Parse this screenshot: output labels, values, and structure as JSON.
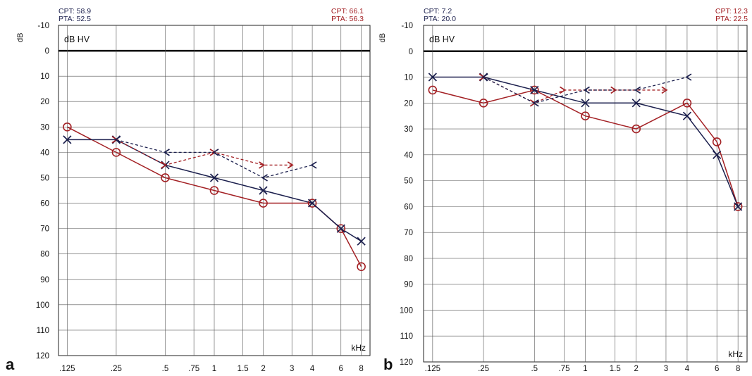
{
  "colors": {
    "right": "#a32024",
    "left": "#1b1f4d",
    "grid": "#555555",
    "zero_line": "#000000"
  },
  "chart_data": [
    {
      "type": "line",
      "panel_label": "a",
      "header_left": {
        "cpt": "CPT: 58.9",
        "pta": "PTA: 52.5"
      },
      "header_right": {
        "cpt": "CPT: 66.1",
        "pta": "PTA: 56.3"
      },
      "ylabel": "dB",
      "inner_label": "dB HV",
      "xlabel": "kHz",
      "x_ticks": [
        ".125",
        ".25",
        ".5",
        ".75",
        "1",
        "1.5",
        "2",
        "3",
        "4",
        "6",
        "8"
      ],
      "x_tick_values": [
        0.125,
        0.25,
        0.5,
        0.75,
        1,
        1.5,
        2,
        3,
        4,
        6,
        8
      ],
      "y_ticks": [
        "-10",
        "0",
        "10",
        "20",
        "30",
        "40",
        "50",
        "60",
        "70",
        "80",
        "90",
        "100",
        "110",
        "120"
      ],
      "ylim": [
        -10,
        120
      ],
      "y_inverted": true,
      "series": [
        {
          "key": "right_air",
          "marker": "circle",
          "line": "solid",
          "color_key": "right",
          "x": [
            0.125,
            0.25,
            0.5,
            1,
            2,
            4,
            6,
            8
          ],
          "y": [
            30,
            40,
            50,
            55,
            60,
            60,
            70,
            85
          ]
        },
        {
          "key": "left_air",
          "marker": "cross",
          "line": "solid",
          "color_key": "left",
          "x": [
            0.125,
            0.25,
            0.5,
            1,
            2,
            4,
            6,
            8
          ],
          "y": [
            35,
            35,
            45,
            50,
            55,
            60,
            70,
            75
          ]
        },
        {
          "key": "right_bone",
          "marker": "arrow-right",
          "line": "dashed",
          "color_key": "right",
          "x": [
            0.25,
            0.5,
            1,
            2,
            3
          ],
          "y": [
            35,
            45,
            40,
            45,
            45
          ]
        },
        {
          "key": "left_bone",
          "marker": "arrow-left",
          "line": "dashed",
          "color_key": "left",
          "x": [
            0.25,
            0.5,
            1,
            2,
            4
          ],
          "y": [
            35,
            40,
            40,
            50,
            45
          ]
        }
      ]
    },
    {
      "type": "line",
      "panel_label": "b",
      "header_left": {
        "cpt": "CPT:  7.2",
        "pta": "PTA: 20.0"
      },
      "header_right": {
        "cpt": "CPT: 12.3",
        "pta": "PTA: 22.5"
      },
      "ylabel": "dB",
      "inner_label": "dB HV",
      "xlabel": "kHz",
      "x_ticks": [
        ".125",
        ".25",
        ".5",
        ".75",
        "1",
        "1.5",
        "2",
        "3",
        "4",
        "6",
        "8"
      ],
      "x_tick_values": [
        0.125,
        0.25,
        0.5,
        0.75,
        1,
        1.5,
        2,
        3,
        4,
        6,
        8
      ],
      "y_ticks": [
        "-10",
        "0",
        "10",
        "20",
        "30",
        "40",
        "50",
        "60",
        "70",
        "80",
        "90",
        "100",
        "110",
        "120"
      ],
      "ylim": [
        -10,
        120
      ],
      "y_inverted": true,
      "series": [
        {
          "key": "right_air",
          "marker": "circle",
          "line": "solid",
          "color_key": "right",
          "x": [
            0.125,
            0.25,
            0.5,
            1,
            2,
            4,
            6,
            8
          ],
          "y": [
            15,
            20,
            15,
            25,
            30,
            20,
            35,
            60
          ]
        },
        {
          "key": "left_air",
          "marker": "cross",
          "line": "solid",
          "color_key": "left",
          "x": [
            0.125,
            0.25,
            0.5,
            1,
            2,
            4,
            6,
            8
          ],
          "y": [
            10,
            10,
            15,
            20,
            20,
            25,
            40,
            60
          ]
        },
        {
          "key": "right_bone",
          "marker": "arrow-right",
          "line": "dashed",
          "color_key": "right",
          "x": [
            0.25,
            0.5,
            0.75,
            1.5,
            3
          ],
          "y": [
            10,
            20,
            15,
            15,
            15
          ]
        },
        {
          "key": "left_bone",
          "marker": "arrow-left",
          "line": "dashed",
          "color_key": "left",
          "x": [
            0.25,
            0.5,
            1,
            2,
            4
          ],
          "y": [
            10,
            20,
            15,
            15,
            10
          ]
        }
      ]
    }
  ]
}
